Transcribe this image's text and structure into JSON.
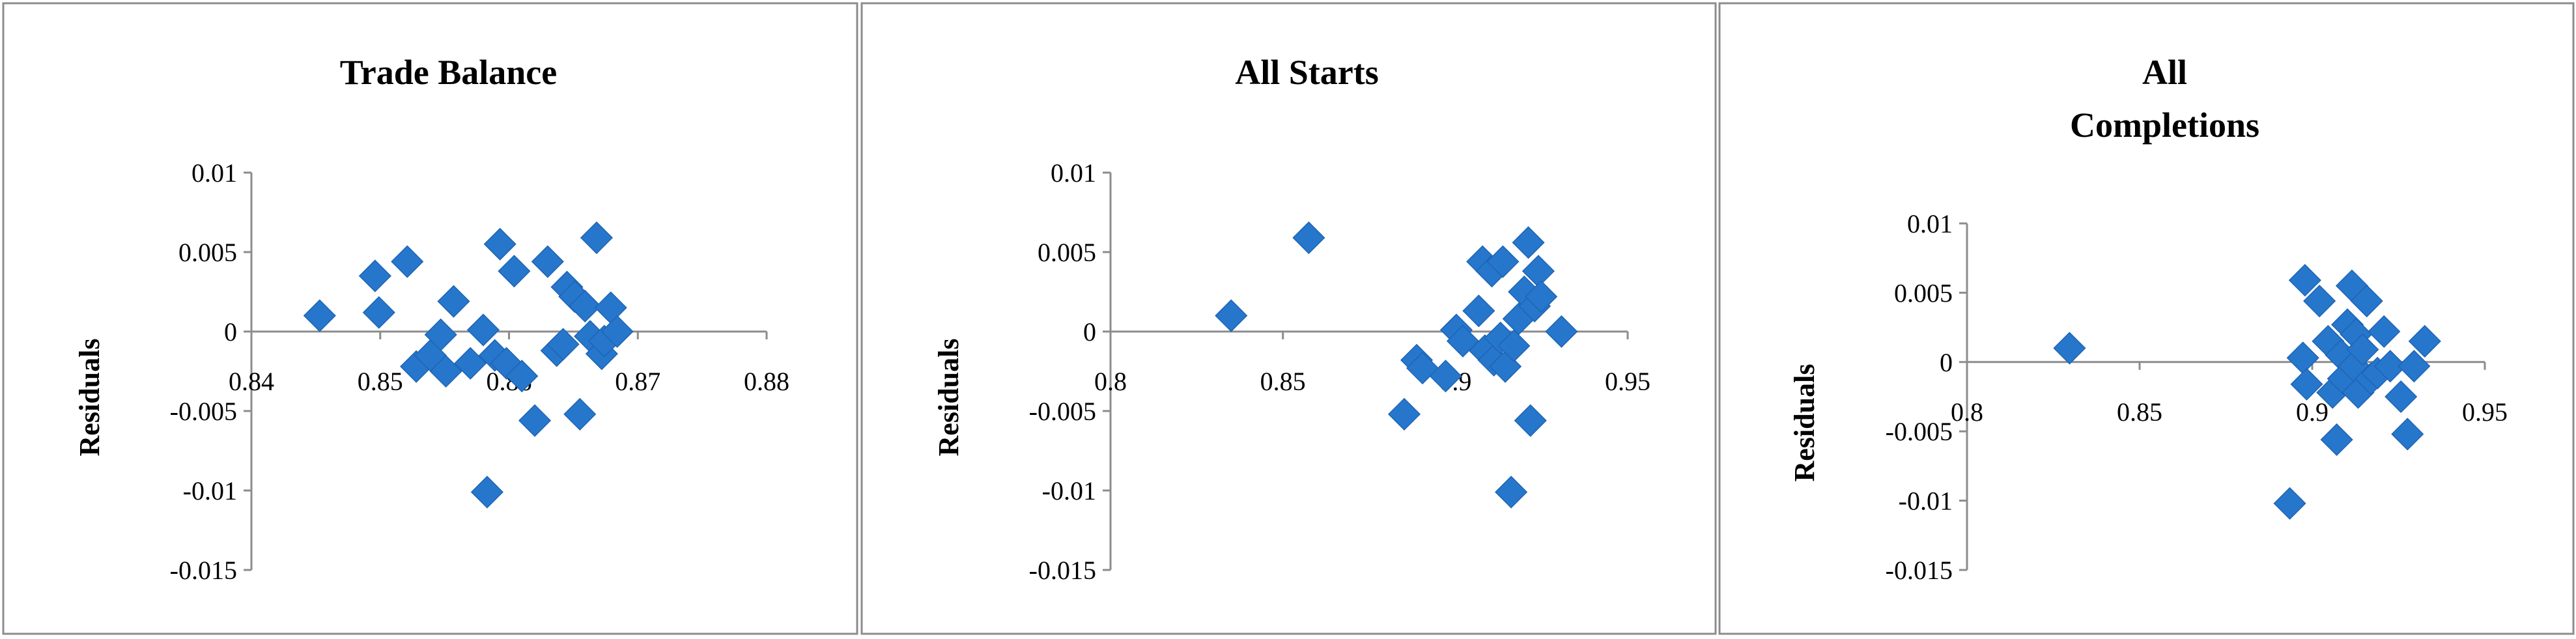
{
  "chart_data": [
    {
      "type": "scatter",
      "title": "Trade Balance",
      "ylabel": "Residuals",
      "xlim": [
        0.84,
        0.88
      ],
      "ylim": [
        -0.015,
        0.01
      ],
      "xticks": [
        "0.84",
        "0.85",
        "0.86",
        "0.87",
        "0.88"
      ],
      "yticks": [
        "0.01",
        "0.005",
        "0",
        "-0.005",
        "-0.01",
        "-0.015"
      ],
      "marker": "diamond",
      "color": "#2677cc",
      "points": [
        {
          "x": 0.8453,
          "y": 0.001
        },
        {
          "x": 0.8496,
          "y": 0.0035
        },
        {
          "x": 0.8499,
          "y": 0.0012
        },
        {
          "x": 0.8521,
          "y": 0.0044
        },
        {
          "x": 0.8528,
          "y": -0.0022
        },
        {
          "x": 0.8539,
          "y": -0.0015
        },
        {
          "x": 0.8547,
          "y": -0.0002
        },
        {
          "x": 0.8551,
          "y": -0.0025
        },
        {
          "x": 0.8557,
          "y": 0.0019
        },
        {
          "x": 0.857,
          "y": -0.002
        },
        {
          "x": 0.858,
          "y": 0.0001
        },
        {
          "x": 0.8583,
          "y": -0.0101
        },
        {
          "x": 0.8589,
          "y": -0.0015
        },
        {
          "x": 0.8593,
          "y": 0.0055
        },
        {
          "x": 0.8598,
          "y": -0.002
        },
        {
          "x": 0.8604,
          "y": 0.0038
        },
        {
          "x": 0.861,
          "y": -0.0028
        },
        {
          "x": 0.862,
          "y": -0.0056
        },
        {
          "x": 0.863,
          "y": 0.0044
        },
        {
          "x": 0.8637,
          "y": -0.0012
        },
        {
          "x": 0.8642,
          "y": -0.0008
        },
        {
          "x": 0.8645,
          "y": 0.0028
        },
        {
          "x": 0.8651,
          "y": 0.0022
        },
        {
          "x": 0.8655,
          "y": -0.0052
        },
        {
          "x": 0.8659,
          "y": 0.0016
        },
        {
          "x": 0.8663,
          "y": -0.0003
        },
        {
          "x": 0.8668,
          "y": 0.0059
        },
        {
          "x": 0.8672,
          "y": -0.0014
        },
        {
          "x": 0.8674,
          "y": -0.0006
        },
        {
          "x": 0.8679,
          "y": 0.0015
        },
        {
          "x": 0.8684,
          "y": 0.0
        }
      ]
    },
    {
      "type": "scatter",
      "title": "All Starts",
      "ylabel": "Residuals",
      "xlim": [
        0.8,
        0.95
      ],
      "ylim": [
        -0.015,
        0.01
      ],
      "xticks": [
        "0.8",
        "0.85",
        "0.9",
        "0.95"
      ],
      "yticks": [
        "0.01",
        "0.005",
        "0",
        "-0.005",
        "-0.01",
        "-0.015"
      ],
      "marker": "diamond",
      "color": "#2677cc",
      "points": [
        {
          "x": 0.835,
          "y": 0.001
        },
        {
          "x": 0.8575,
          "y": 0.0059
        },
        {
          "x": 0.8852,
          "y": -0.0052
        },
        {
          "x": 0.8888,
          "y": -0.0018
        },
        {
          "x": 0.8905,
          "y": -0.0023
        },
        {
          "x": 0.8972,
          "y": -0.0028
        },
        {
          "x": 0.9003,
          "y": 0.0001
        },
        {
          "x": 0.9022,
          "y": -0.0006
        },
        {
          "x": 0.9068,
          "y": 0.0013
        },
        {
          "x": 0.9079,
          "y": 0.0044
        },
        {
          "x": 0.9086,
          "y": -0.0012
        },
        {
          "x": 0.9106,
          "y": 0.0038
        },
        {
          "x": 0.9112,
          "y": -0.0018
        },
        {
          "x": 0.9131,
          "y": -0.0004
        },
        {
          "x": 0.9138,
          "y": 0.0044
        },
        {
          "x": 0.9145,
          "y": -0.0022
        },
        {
          "x": 0.9162,
          "y": -0.0101
        },
        {
          "x": 0.917,
          "y": -0.0009
        },
        {
          "x": 0.9184,
          "y": 0.0008
        },
        {
          "x": 0.92,
          "y": 0.0025
        },
        {
          "x": 0.9212,
          "y": 0.0056
        },
        {
          "x": 0.9218,
          "y": -0.0056
        },
        {
          "x": 0.923,
          "y": 0.0016
        },
        {
          "x": 0.9241,
          "y": 0.0038
        },
        {
          "x": 0.9249,
          "y": 0.0022
        },
        {
          "x": 0.9308,
          "y": 0.0
        }
      ]
    },
    {
      "type": "scatter",
      "title": "All Completions",
      "title_lines": [
        "All",
        "Completions"
      ],
      "ylabel": "Residuals",
      "xlim": [
        0.8,
        0.95
      ],
      "ylim": [
        -0.015,
        0.01
      ],
      "xticks": [
        "0.8",
        "0.85",
        "0.9",
        "0.95"
      ],
      "yticks": [
        "0.01",
        "0.005",
        "0",
        "-0.005",
        "-0.01",
        "-0.015"
      ],
      "marker": "diamond",
      "color": "#2677cc",
      "points": [
        {
          "x": 0.8297,
          "y": 0.001
        },
        {
          "x": 0.8935,
          "y": -0.0102
        },
        {
          "x": 0.8973,
          "y": 0.0003
        },
        {
          "x": 0.8979,
          "y": 0.0059
        },
        {
          "x": 0.8984,
          "y": -0.0016
        },
        {
          "x": 0.9021,
          "y": 0.0044
        },
        {
          "x": 0.9046,
          "y": 0.0015
        },
        {
          "x": 0.9059,
          "y": -0.0022
        },
        {
          "x": 0.9071,
          "y": -0.0056
        },
        {
          "x": 0.9084,
          "y": 0.0005
        },
        {
          "x": 0.909,
          "y": -0.0012
        },
        {
          "x": 0.9102,
          "y": 0.0027
        },
        {
          "x": 0.9115,
          "y": 0.0055
        },
        {
          "x": 0.9121,
          "y": -0.0003
        },
        {
          "x": 0.9127,
          "y": 0.002
        },
        {
          "x": 0.9133,
          "y": -0.0022
        },
        {
          "x": 0.9146,
          "y": 0.0009
        },
        {
          "x": 0.9158,
          "y": 0.0044
        },
        {
          "x": 0.917,
          "y": -0.0012
        },
        {
          "x": 0.9189,
          "y": -0.0008
        },
        {
          "x": 0.9208,
          "y": 0.0022
        },
        {
          "x": 0.9226,
          "y": -0.0003
        },
        {
          "x": 0.9257,
          "y": -0.0025
        },
        {
          "x": 0.9276,
          "y": -0.0052
        },
        {
          "x": 0.9295,
          "y": -0.0003
        },
        {
          "x": 0.9326,
          "y": 0.0015
        }
      ]
    }
  ]
}
